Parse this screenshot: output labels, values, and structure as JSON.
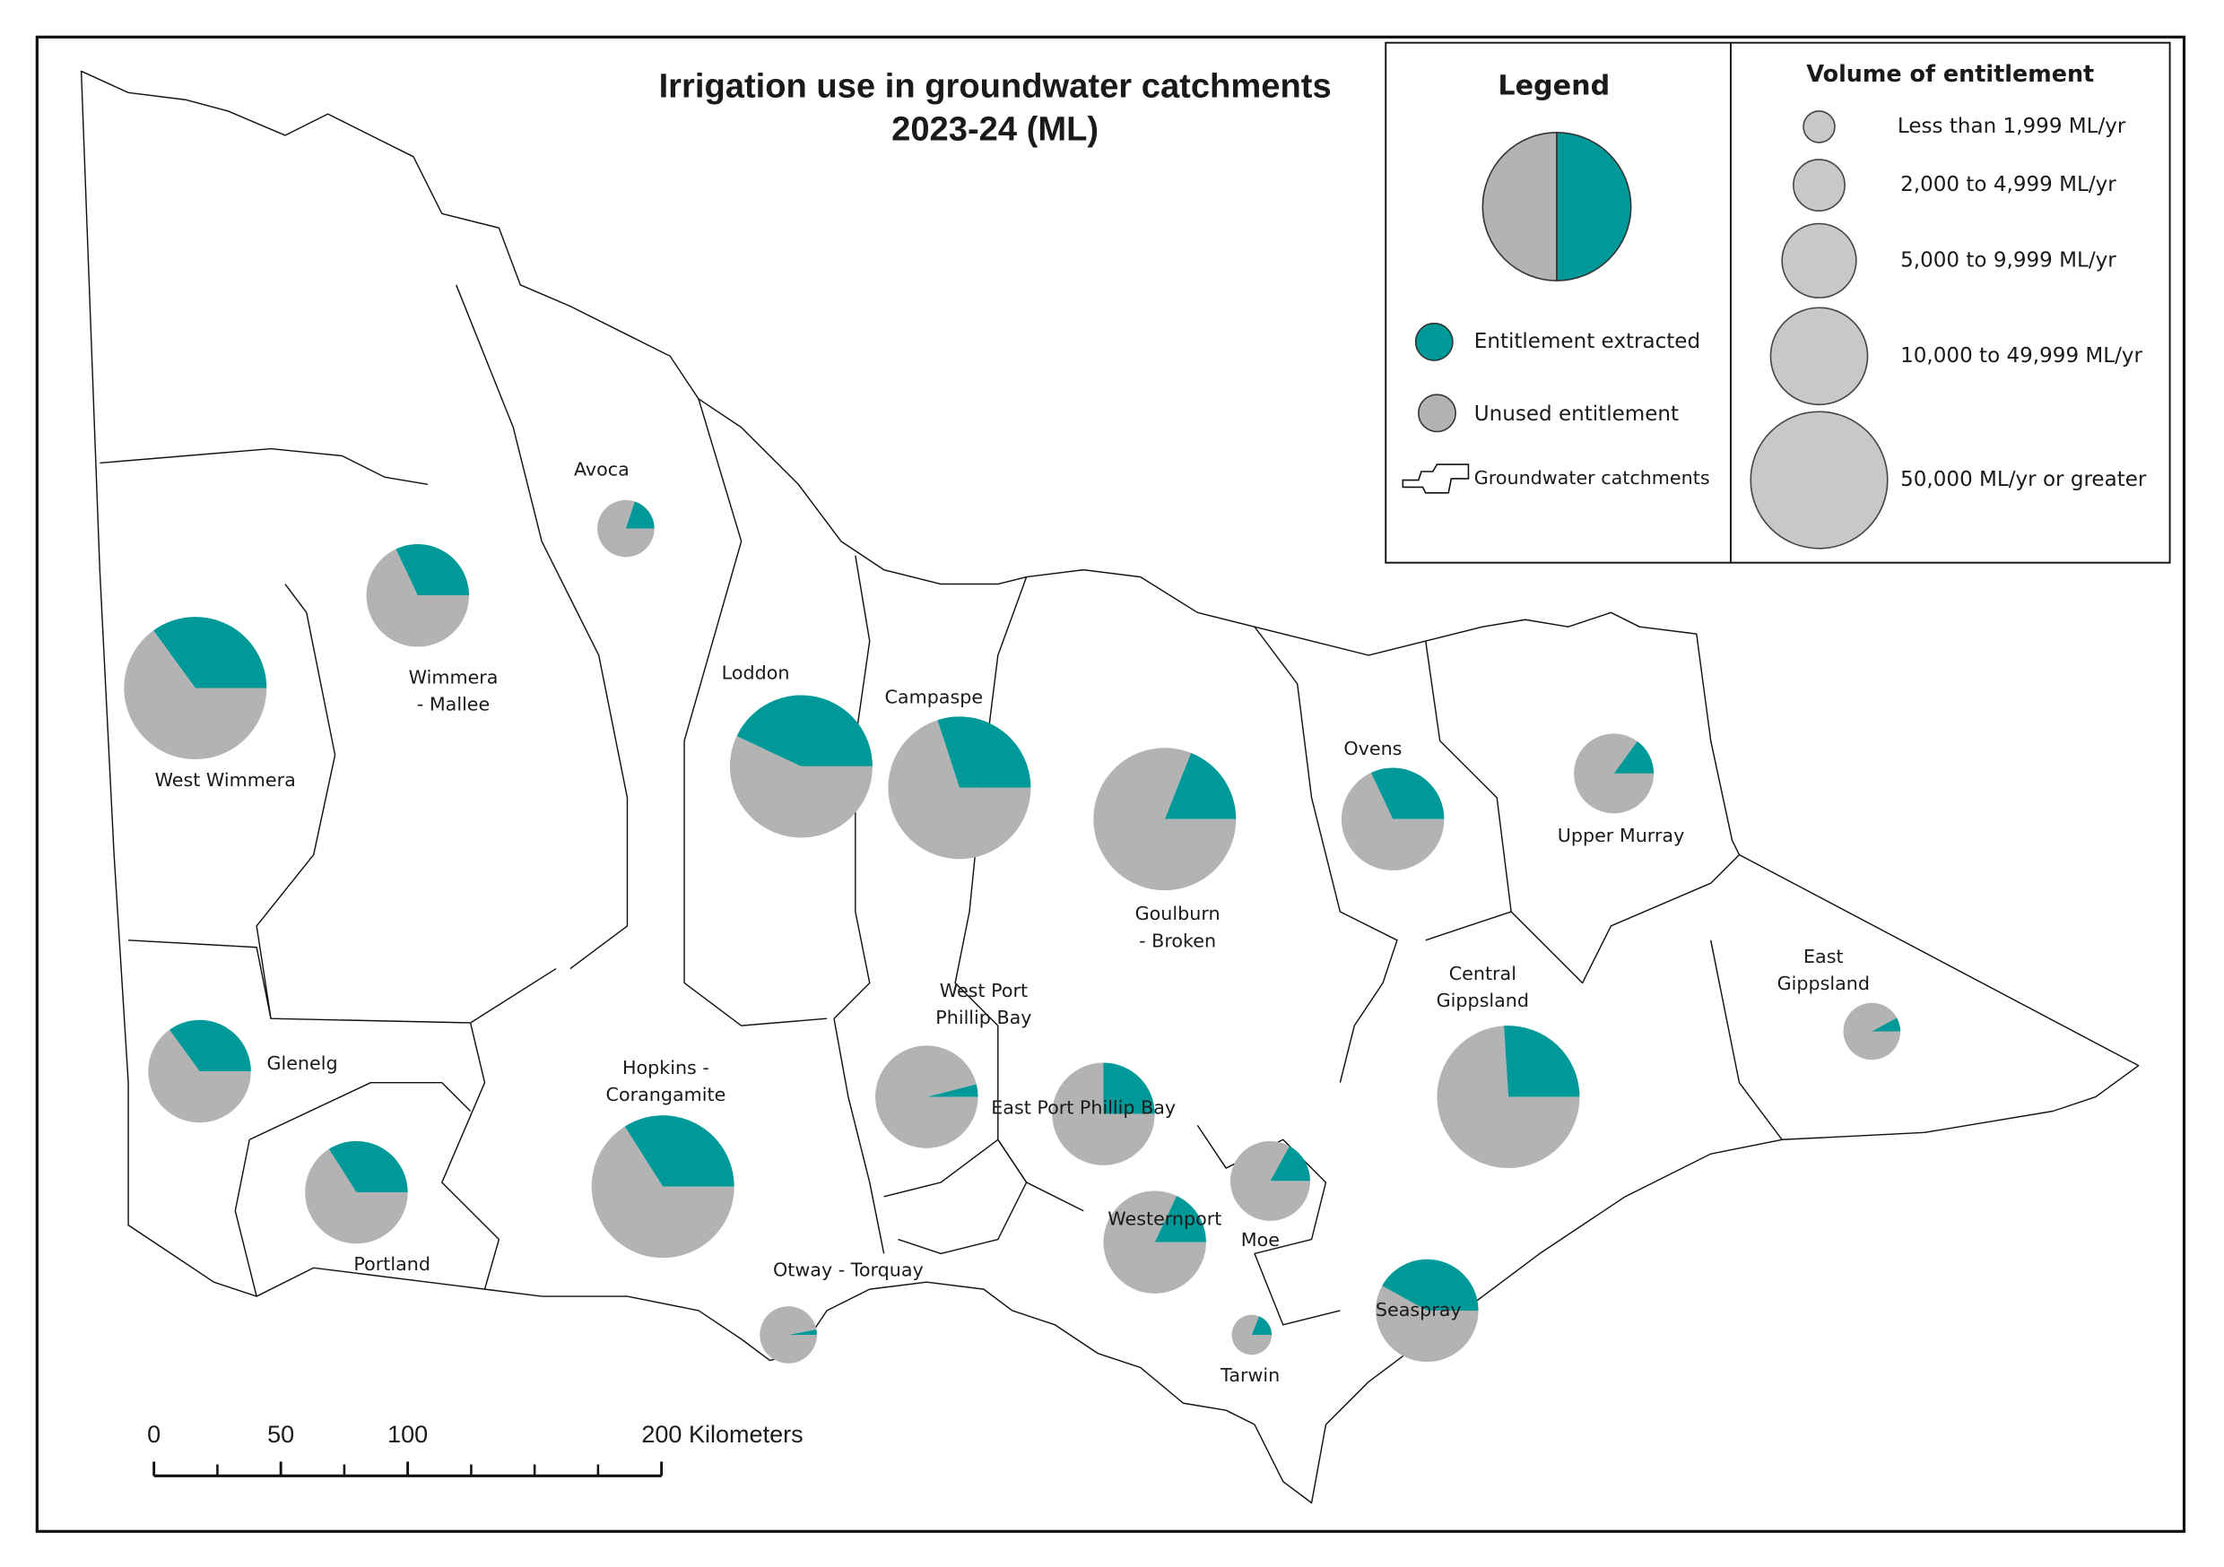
{
  "title": [
    "Irrigation use in groundwater catchments",
    "2023-24 (ML)"
  ],
  "legend": {
    "title": "Legend",
    "extracted": {
      "label": "Entitlement extracted",
      "color": "#009999"
    },
    "unused": {
      "label": "Unused entitlement",
      "color": "#b3b3b3"
    },
    "catchments": "Groundwater catchments"
  },
  "volume_legend": {
    "title": "Volume of entitlement",
    "classes": [
      "Less than 1,999 ML/yr",
      "2,000 to 4,999 ML/yr",
      "5,000 to 9,999 ML/yr",
      "10,000 to 49,999 ML/yr",
      "50,000 ML/yr or greater"
    ]
  },
  "catchments": [
    {
      "name": [
        "West Wimmera"
      ],
      "extracted": 35,
      "unused": 65,
      "entitlement_class": 4
    },
    {
      "name": [
        "Wimmera",
        "- Mallee"
      ],
      "extracted": 32,
      "unused": 68,
      "entitlement_class": 3
    },
    {
      "name": [
        "Avoca"
      ],
      "extracted": 20,
      "unused": 80,
      "entitlement_class": 1
    },
    {
      "name": [
        "Loddon"
      ],
      "extracted": 43,
      "unused": 57,
      "entitlement_class": 4
    },
    {
      "name": [
        "Campaspe"
      ],
      "extracted": 30,
      "unused": 70,
      "entitlement_class": 4
    },
    {
      "name": [
        "Goulburn",
        "- Broken"
      ],
      "extracted": 19,
      "unused": 81,
      "entitlement_class": 4
    },
    {
      "name": [
        "Ovens"
      ],
      "extracted": 32,
      "unused": 68,
      "entitlement_class": 3
    },
    {
      "name": [
        "Upper Murray"
      ],
      "extracted": 15,
      "unused": 85,
      "entitlement_class": 2
    },
    {
      "name": [
        "East",
        "Gippsland"
      ],
      "extracted": 8,
      "unused": 92,
      "entitlement_class": 1
    },
    {
      "name": [
        "Central",
        "Gippsland"
      ],
      "extracted": 26,
      "unused": 74,
      "entitlement_class": 4
    },
    {
      "name": [
        "Glenelg"
      ],
      "extracted": 35,
      "unused": 65,
      "entitlement_class": 3
    },
    {
      "name": [
        "Portland"
      ],
      "extracted": 34,
      "unused": 66,
      "entitlement_class": 3
    },
    {
      "name": [
        "Hopkins -",
        "Corangamite"
      ],
      "extracted": 34,
      "unused": 66,
      "entitlement_class": 4
    },
    {
      "name": [
        "West Port",
        "Phillip Bay"
      ],
      "extracted": 4,
      "unused": 96,
      "entitlement_class": 3
    },
    {
      "name": [
        "East Port Phillip Bay"
      ],
      "extracted": 25,
      "unused": 75,
      "entitlement_class": 3
    },
    {
      "name": [
        "Moe"
      ],
      "extracted": 17,
      "unused": 83,
      "entitlement_class": 2
    },
    {
      "name": [
        "Westernport"
      ],
      "extracted": 18,
      "unused": 82,
      "entitlement_class": 3
    },
    {
      "name": [
        "Otway - Torquay"
      ],
      "extracted": 3,
      "unused": 97,
      "entitlement_class": 1
    },
    {
      "name": [
        "Tarwin"
      ],
      "extracted": 19,
      "unused": 81,
      "entitlement_class": 0
    },
    {
      "name": [
        "Seaspray"
      ],
      "extracted": 42,
      "unused": 58,
      "entitlement_class": 3
    }
  ],
  "scale_bar": {
    "xlim": [
      0,
      200
    ],
    "ticks": [
      0,
      50,
      100,
      {
        "value": 200,
        "label": "200 Kilometers"
      }
    ]
  }
}
